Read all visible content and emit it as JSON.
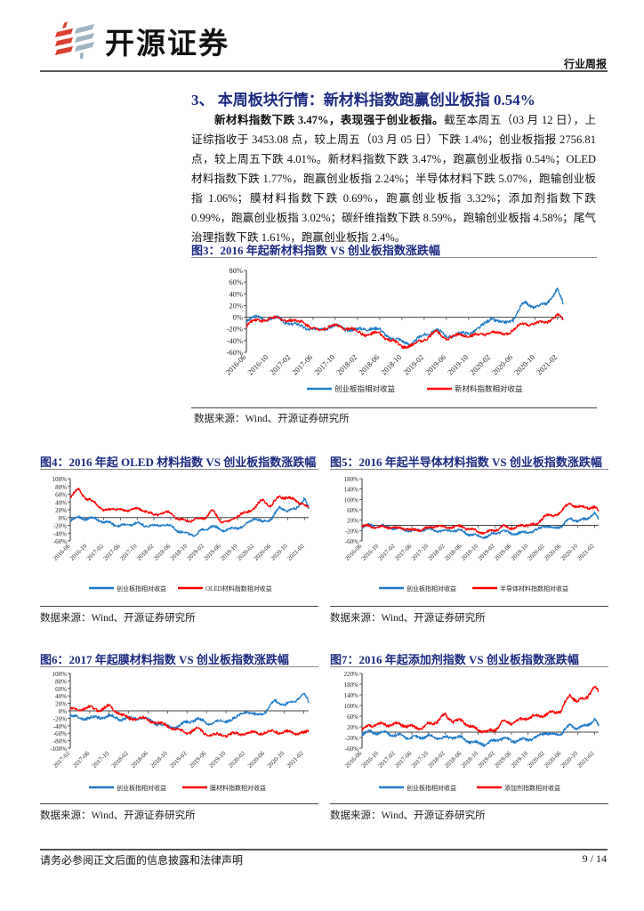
{
  "header": {
    "brand": "开源证券",
    "report_type": "行业周报"
  },
  "section": {
    "title": "3、 本周板块行情：新材料指数跑赢创业板指 0.54%",
    "lead_bold": "新材料指数下跌 3.47%，表现强于创业板指。",
    "body": "截至本周五（03 月 12 日），上证综指收于 3453.08 点，较上周五（03 月 05 日）下跌 1.4%；创业板指报 2756.81 点，较上周五下跌 4.01%。新材料指数下跌 3.47%，跑赢创业板指 0.54%；OLED 材料指数下跌 1.77%，跑赢创业板指 2.24%；半导体材料下跌 5.07%，跑输创业板指 1.06%；膜材料指数下跌 0.69%，跑赢创业板指 3.32%；添加剂指数下跌 0.99%，跑赢创业板指 3.02%；碳纤维指数下跌 8.59%，跑输创业板指 4.58%；尾气治理指数下跌 1.61%，跑赢创业板指 2.4%。"
  },
  "figures": [
    {
      "title": "图3：2016 年起新材料指数 VS 创业板指数涨跌幅",
      "source": "数据来源：Wind、开源证券研究所"
    },
    {
      "title": "图4：2016 年起 OLED 材料指数 VS 创业板指数涨跌幅",
      "source": "数据来源：Wind、开源证券研究所"
    },
    {
      "title": "图5：2016 年起半导体材料指数 VS 创业板指数涨跌幅",
      "source": "数据来源：Wind、开源证券研究所"
    },
    {
      "title": "图6：2017 年起膜材料指数 VS 创业板指数涨跌幅",
      "source": "数据来源：Wind、开源证券研究所"
    },
    {
      "title": "图7：2016 年起添加剂指数 VS 创业板指数涨跌幅",
      "source": "数据来源：Wind、开源证券研究所"
    }
  ],
  "colors": {
    "chinext": "#1f7bc8",
    "sector": "#ff0000",
    "title": "#1b2a80"
  },
  "chart_data": [
    {
      "type": "line",
      "ylim": [
        -60,
        80
      ],
      "yticks": [
        "80%",
        "60%",
        "40%",
        "20%",
        "0%",
        "-20%",
        "-40%",
        "-60%"
      ],
      "ytick_values": [
        80,
        60,
        40,
        20,
        0,
        -20,
        -40,
        -60
      ],
      "xticks": [
        "2016-06",
        "2016-10",
        "2017-02",
        "2017-06",
        "2017-10",
        "2018-02",
        "2018-06",
        "2018-10",
        "2019-02",
        "2019-06",
        "2019-10",
        "2020-02",
        "2020-06",
        "2020-10",
        "2021-02"
      ],
      "x": [
        "2016-06",
        "2016-08",
        "2016-10",
        "2016-12",
        "2017-02",
        "2017-04",
        "2017-06",
        "2017-08",
        "2017-10",
        "2017-12",
        "2018-02",
        "2018-04",
        "2018-06",
        "2018-08",
        "2018-10",
        "2018-12",
        "2019-02",
        "2019-04",
        "2019-06",
        "2019-08",
        "2019-10",
        "2019-12",
        "2020-02",
        "2020-04",
        "2020-06",
        "2020-08",
        "2020-10",
        "2020-12",
        "2021-02",
        "2021-03"
      ],
      "series": [
        {
          "name": "创业板指相对收益",
          "values": [
            -5,
            0,
            -3,
            -2,
            -12,
            -15,
            -22,
            -18,
            -15,
            -20,
            -22,
            -18,
            -22,
            -35,
            -42,
            -44,
            -30,
            -22,
            -32,
            -30,
            -26,
            -20,
            0,
            -12,
            -3,
            25,
            18,
            22,
            50,
            22
          ]
        },
        {
          "name": "新材料指数相对收益",
          "values": [
            -15,
            -3,
            -5,
            0,
            -8,
            -5,
            -22,
            -18,
            -15,
            -18,
            -25,
            -30,
            -28,
            -40,
            -50,
            -48,
            -38,
            -25,
            -35,
            -32,
            -30,
            -32,
            -25,
            -30,
            -22,
            -10,
            -12,
            -8,
            3,
            -5
          ]
        }
      ]
    },
    {
      "type": "line",
      "ylim": [
        -60,
        100
      ],
      "yticks": [
        "100%",
        "80%",
        "60%",
        "40%",
        "20%",
        "0%",
        "-20%",
        "-40%",
        "-60%"
      ],
      "ytick_values": [
        100,
        80,
        60,
        40,
        20,
        0,
        -20,
        -40,
        -60
      ],
      "xticks": [
        "2016-06",
        "2016-10",
        "2017-02",
        "2017-06",
        "2017-10",
        "2018-02",
        "2018-06",
        "2018-10",
        "2019-02",
        "2019-06",
        "2019-10",
        "2020-02",
        "2020-06",
        "2020-10",
        "2021-02"
      ],
      "x": [
        "2016-06",
        "2016-08",
        "2016-10",
        "2016-12",
        "2017-02",
        "2017-04",
        "2017-06",
        "2017-08",
        "2017-10",
        "2017-12",
        "2018-02",
        "2018-04",
        "2018-06",
        "2018-08",
        "2018-10",
        "2018-12",
        "2019-02",
        "2019-04",
        "2019-06",
        "2019-08",
        "2019-10",
        "2019-12",
        "2020-02",
        "2020-04",
        "2020-06",
        "2020-08",
        "2020-10",
        "2020-12",
        "2021-02",
        "2021-03"
      ],
      "series": [
        {
          "name": "创业板指相对收益",
          "values": [
            -5,
            0,
            -3,
            -2,
            -12,
            -15,
            -22,
            -18,
            -15,
            -20,
            -22,
            -18,
            -22,
            -35,
            -42,
            -44,
            -30,
            -22,
            -32,
            -30,
            -26,
            -20,
            0,
            -12,
            -3,
            25,
            18,
            22,
            50,
            22
          ]
        },
        {
          "name": "OLED材料指数相对收益",
          "values": [
            50,
            75,
            45,
            40,
            15,
            25,
            18,
            20,
            22,
            18,
            5,
            12,
            12,
            -5,
            -8,
            -5,
            -2,
            18,
            -10,
            -12,
            5,
            12,
            25,
            45,
            30,
            55,
            50,
            45,
            30,
            25
          ]
        }
      ]
    },
    {
      "type": "line",
      "ylim": [
        -60,
        180
      ],
      "yticks": [
        "180%",
        "140%",
        "100%",
        "60%",
        "20%",
        "-20%",
        "-60%"
      ],
      "ytick_values": [
        180,
        140,
        100,
        60,
        20,
        -20,
        -60
      ],
      "xticks": [
        "2016-06",
        "2016-10",
        "2017-02",
        "2017-06",
        "2017-10",
        "2018-02",
        "2018-06",
        "2018-10",
        "2019-02",
        "2019-06",
        "2019-10",
        "2020-02",
        "2020-06",
        "2020-10",
        "2021-02"
      ],
      "x": [
        "2016-06",
        "2016-08",
        "2016-10",
        "2016-12",
        "2017-02",
        "2017-04",
        "2017-06",
        "2017-08",
        "2017-10",
        "2017-12",
        "2018-02",
        "2018-04",
        "2018-06",
        "2018-08",
        "2018-10",
        "2018-12",
        "2019-02",
        "2019-04",
        "2019-06",
        "2019-08",
        "2019-10",
        "2019-12",
        "2020-02",
        "2020-04",
        "2020-06",
        "2020-08",
        "2020-10",
        "2020-12",
        "2021-02",
        "2021-03"
      ],
      "series": [
        {
          "name": "创业板指相对收益",
          "values": [
            -5,
            0,
            -3,
            -2,
            -12,
            -15,
            -22,
            -18,
            -15,
            -20,
            -22,
            -18,
            -22,
            -35,
            -42,
            -44,
            -30,
            -22,
            -32,
            -30,
            -26,
            -20,
            0,
            -12,
            -3,
            25,
            18,
            22,
            50,
            22
          ]
        },
        {
          "name": "半导体材料指数相对收益",
          "values": [
            -5,
            -3,
            -8,
            -5,
            -12,
            -10,
            -20,
            -15,
            -12,
            0,
            -8,
            -5,
            -5,
            -15,
            -25,
            -28,
            -18,
            -5,
            -10,
            -5,
            5,
            0,
            40,
            35,
            55,
            85,
            70,
            70,
            68,
            55
          ]
        }
      ]
    },
    {
      "type": "line",
      "ylim": [
        -100,
        100
      ],
      "yticks": [
        "100%",
        "80%",
        "60%",
        "40%",
        "20%",
        "0%",
        "-20%",
        "-40%",
        "-60%",
        "-80%",
        "-100%"
      ],
      "ytick_values": [
        100,
        80,
        60,
        40,
        20,
        0,
        -20,
        -40,
        -60,
        -80,
        -100
      ],
      "xticks": [
        "2017-02",
        "2017-06",
        "2017-10",
        "2018-02",
        "2018-06",
        "2018-10",
        "2019-02",
        "2019-06",
        "2019-10",
        "2020-02",
        "2020-06",
        "2020-10",
        "2021-02"
      ],
      "x": [
        "2017-02",
        "2017-04",
        "2017-06",
        "2017-08",
        "2017-10",
        "2017-12",
        "2018-02",
        "2018-04",
        "2018-06",
        "2018-08",
        "2018-10",
        "2018-12",
        "2019-02",
        "2019-04",
        "2019-06",
        "2019-08",
        "2019-10",
        "2019-12",
        "2020-02",
        "2020-04",
        "2020-06",
        "2020-08",
        "2020-10",
        "2020-12",
        "2021-02",
        "2021-03"
      ],
      "series": [
        {
          "name": "创业板指相对收益",
          "values": [
            -15,
            -18,
            -20,
            -17,
            -15,
            -20,
            -22,
            -18,
            -22,
            -35,
            -42,
            -44,
            -30,
            -22,
            -32,
            -30,
            -26,
            -20,
            0,
            -12,
            -3,
            25,
            18,
            22,
            50,
            22
          ]
        },
        {
          "name": "膜材料指数相对收益",
          "values": [
            2,
            5,
            8,
            3,
            12,
            -5,
            -22,
            -18,
            -25,
            -32,
            -40,
            -50,
            -60,
            -48,
            -62,
            -65,
            -64,
            -62,
            -60,
            -60,
            -58,
            -55,
            -57,
            -58,
            -60,
            -57
          ]
        }
      ]
    },
    {
      "type": "line",
      "ylim": [
        -60,
        220
      ],
      "yticks": [
        "220%",
        "180%",
        "140%",
        "100%",
        "60%",
        "20%",
        "-20%",
        "-60%"
      ],
      "ytick_values": [
        220,
        180,
        140,
        100,
        60,
        20,
        -20,
        -60
      ],
      "xticks": [
        "2016-06",
        "2016-10",
        "2017-02",
        "2017-06",
        "2017-10",
        "2018-02",
        "2018-06",
        "2018-10",
        "2019-02",
        "2019-06",
        "2019-10",
        "2020-02",
        "2020-06",
        "2020-10",
        "2021-02"
      ],
      "x": [
        "2016-06",
        "2016-08",
        "2016-10",
        "2016-12",
        "2017-02",
        "2017-04",
        "2017-06",
        "2017-08",
        "2017-10",
        "2017-12",
        "2018-02",
        "2018-04",
        "2018-06",
        "2018-08",
        "2018-10",
        "2018-12",
        "2019-02",
        "2019-04",
        "2019-06",
        "2019-08",
        "2019-10",
        "2019-12",
        "2020-02",
        "2020-04",
        "2020-06",
        "2020-08",
        "2020-10",
        "2020-12",
        "2021-02",
        "2021-03"
      ],
      "series": [
        {
          "name": "创业板指相对收益",
          "values": [
            -5,
            0,
            -3,
            -2,
            -12,
            -15,
            -22,
            -18,
            -15,
            -20,
            -22,
            -18,
            -22,
            -35,
            -42,
            -44,
            -30,
            -22,
            -32,
            -30,
            -26,
            -20,
            0,
            -12,
            -3,
            25,
            18,
            22,
            50,
            22
          ]
        },
        {
          "name": "添加剂指数相对收益",
          "values": [
            10,
            25,
            30,
            28,
            30,
            28,
            20,
            15,
            30,
            40,
            65,
            40,
            45,
            20,
            10,
            0,
            10,
            40,
            35,
            45,
            55,
            60,
            65,
            75,
            80,
            140,
            115,
            130,
            170,
            150
          ]
        }
      ]
    }
  ],
  "footer": {
    "disclaimer": "请务必参阅正文后面的信息披露和法律声明",
    "page": "9 / 14"
  }
}
